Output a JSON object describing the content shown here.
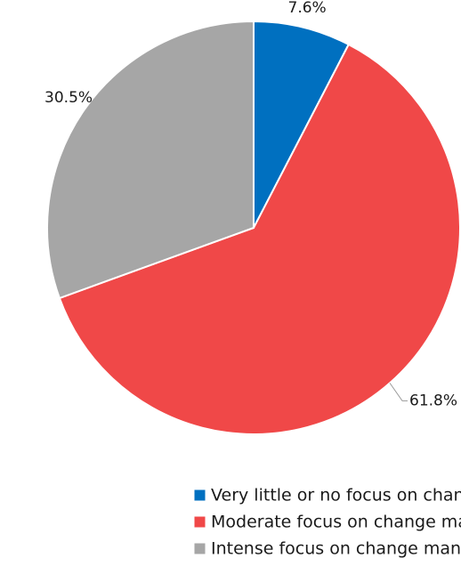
{
  "chart_data": {
    "type": "pie",
    "categories": [
      "Very little or no focus on change management",
      "Moderate focus on change management",
      "Intense focus on change management"
    ],
    "values": [
      7.6,
      61.8,
      30.5
    ],
    "value_labels": [
      "7.6%",
      "61.8%",
      "30.5%"
    ],
    "colors": [
      "#0070c0",
      "#f04848",
      "#a6a6a6"
    ],
    "legend": "bottom"
  }
}
